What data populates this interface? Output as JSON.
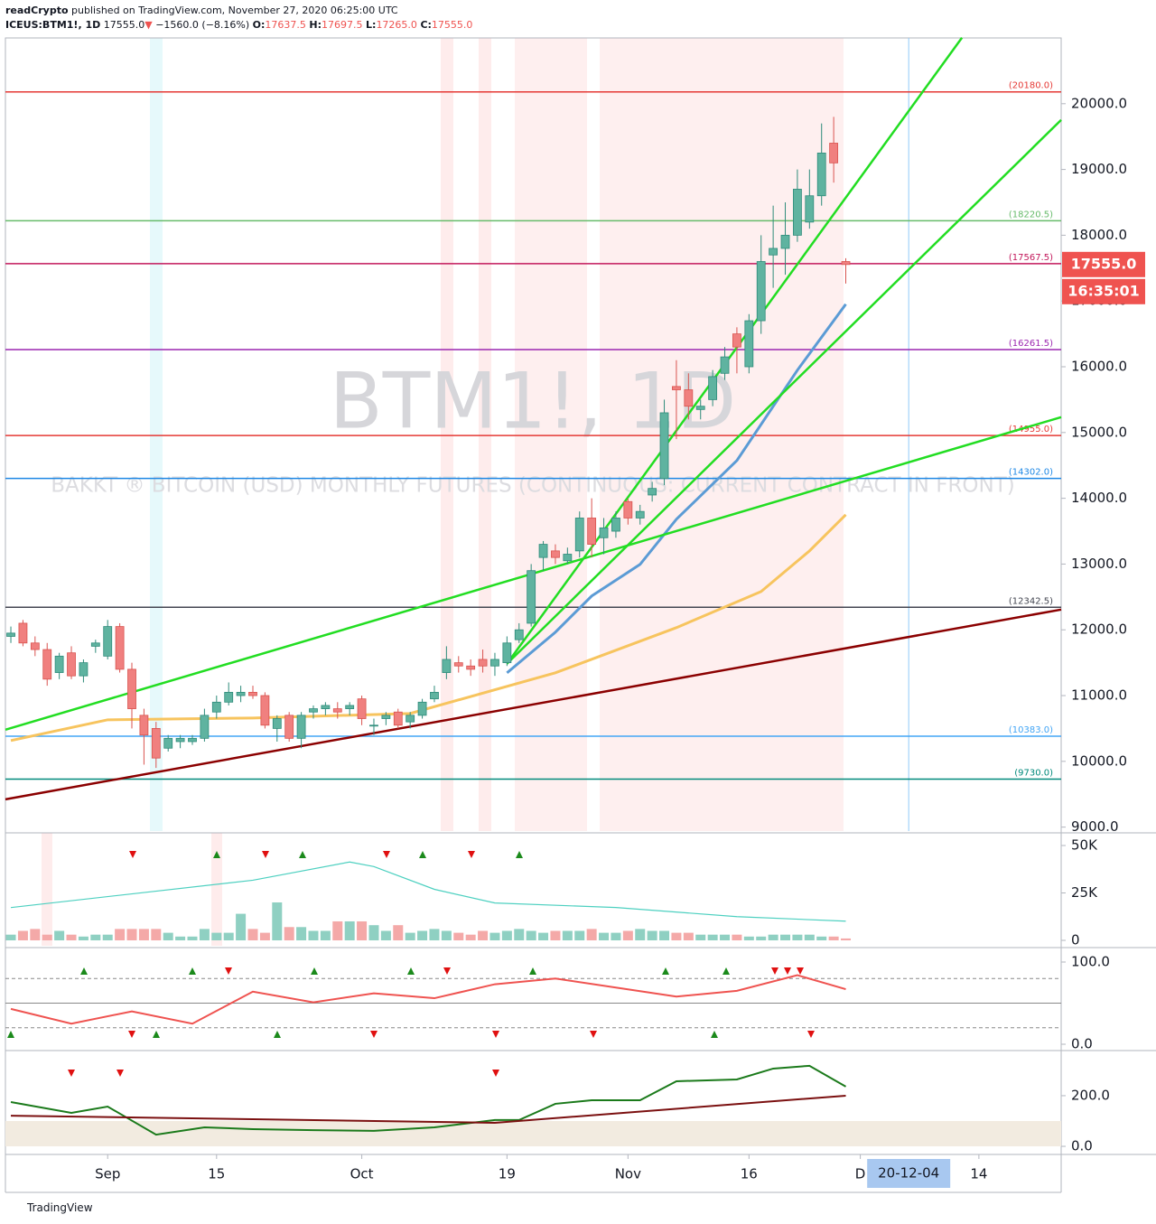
{
  "header": {
    "publisher": "readCrypto",
    "published": "published on TradingView.com, November 27, 2020 06:25:00 UTC",
    "symbol": "ICEUS:BTM1!, 1D",
    "last": "17555.0",
    "arrow": "▼",
    "change": "−1560.0 (−8.16%)",
    "o": "O:",
    "ov": "17637.5",
    "h": "H:",
    "hv": "17697.5",
    "l": "L:",
    "lv": "17265.0",
    "c": "C:",
    "cv": "17555.0",
    "watermark": "BTM1!, 1D",
    "description": "BAKKT ® BITCOIN (USD) MONTHLY FUTURES (CONTINUOUS: CURRENT CONTRACT IN FRONT)",
    "footer": "TradingView"
  },
  "chart_data": [
    {
      "type": "candlestick",
      "xlim": [
        -0.45,
        86.8
      ],
      "ylim": [
        8940,
        21000
      ],
      "up_color": "#5fb3a0",
      "down_color": "#f0807f",
      "open": [
        11900,
        12100,
        11800,
        11700,
        11350,
        11650,
        11300,
        11750,
        11600,
        12050,
        11400,
        10700,
        10500,
        10200,
        10300,
        10300,
        10350,
        10750,
        10900,
        11000,
        11050,
        11000,
        10500,
        10700,
        10350,
        10750,
        10800,
        10800,
        10800,
        10950,
        10550,
        10650,
        10750,
        10600,
        10700,
        10950,
        11350,
        11500,
        11450,
        11550,
        11450,
        11500,
        11850,
        12100,
        13100,
        13200,
        13050,
        13200,
        13700,
        13400,
        13500,
        13950,
        13700,
        14050,
        14300,
        15700,
        15650,
        15350,
        15500,
        15900,
        16500,
        16000,
        16700,
        17700,
        17800,
        18000,
        18200,
        18600,
        19400,
        17600
      ],
      "high": [
        12050,
        12150,
        11900,
        11800,
        11650,
        11750,
        11550,
        11850,
        12150,
        12100,
        11500,
        10800,
        10600,
        10400,
        10400,
        10400,
        10800,
        11000,
        11200,
        11150,
        11150,
        11050,
        10700,
        10750,
        10750,
        10850,
        10900,
        10900,
        10900,
        11000,
        10650,
        10750,
        10800,
        10750,
        10950,
        11150,
        11750,
        11600,
        11550,
        11700,
        11650,
        11900,
        12100,
        13000,
        13350,
        13300,
        13250,
        13800,
        14000,
        13700,
        13800,
        14000,
        13900,
        14250,
        15500,
        16100,
        15900,
        15500,
        15950,
        16300,
        16600,
        16800,
        18000,
        18450,
        18500,
        19000,
        19000,
        19700,
        19800,
        17650
      ],
      "low": [
        11800,
        11750,
        11600,
        11150,
        11250,
        11250,
        11200,
        11650,
        11550,
        11350,
        10500,
        9950,
        9900,
        10150,
        10200,
        10250,
        10300,
        10650,
        10850,
        10900,
        10950,
        10500,
        10300,
        10300,
        10200,
        10650,
        10700,
        10650,
        10700,
        10550,
        10400,
        10550,
        10500,
        10500,
        10650,
        10900,
        11250,
        11350,
        11300,
        11350,
        11300,
        11450,
        11800,
        12050,
        12900,
        13000,
        13000,
        13100,
        13100,
        13150,
        13400,
        13600,
        13600,
        13950,
        14200,
        14900,
        15200,
        15200,
        15400,
        15800,
        15900,
        15900,
        16500,
        17200,
        17400,
        17900,
        18100,
        18450,
        18800,
        17265
      ],
      "close": [
        11950,
        11800,
        11700,
        11250,
        11600,
        11300,
        11500,
        11800,
        12050,
        11400,
        10800,
        10400,
        10050,
        10350,
        10350,
        10350,
        10700,
        10900,
        11050,
        11050,
        11000,
        10550,
        10650,
        10350,
        10700,
        10800,
        10850,
        10750,
        10850,
        10650,
        10550,
        10700,
        10550,
        10700,
        10900,
        11050,
        11550,
        11450,
        11400,
        11450,
        11550,
        11800,
        12000,
        12900,
        13300,
        13100,
        13150,
        13700,
        13300,
        13550,
        13700,
        13700,
        13800,
        14150,
        15300,
        15650,
        15400,
        15400,
        15850,
        16150,
        16300,
        16700,
        17600,
        17800,
        18000,
        18700,
        18600,
        19250,
        19100,
        17555
      ],
      "yticks": [
        {
          "value": 9000,
          "label": "9000.0"
        },
        {
          "value": 10000,
          "label": "10000.0"
        },
        {
          "value": 11000,
          "label": "11000.0"
        },
        {
          "value": 12000,
          "label": "12000.0"
        },
        {
          "value": 13000,
          "label": "13000.0"
        },
        {
          "value": 14000,
          "label": "14000.0"
        },
        {
          "value": 15000,
          "label": "15000.0"
        },
        {
          "value": 16000,
          "label": "16000.0"
        },
        {
          "value": 17000,
          "label": "17000.0"
        },
        {
          "value": 18000,
          "label": "18000.0"
        },
        {
          "value": 19000,
          "label": "19000.0"
        },
        {
          "value": 20000,
          "label": "20000.0"
        }
      ],
      "xticks": [
        {
          "value": 8,
          "label": "Sep"
        },
        {
          "value": 17,
          "label": "15"
        },
        {
          "value": 29,
          "label": "Oct"
        },
        {
          "value": 41,
          "label": "19"
        },
        {
          "value": 51,
          "label": "Nov"
        },
        {
          "value": 61,
          "label": "16"
        },
        {
          "value": 70.2,
          "label": "D"
        },
        {
          "value": 80,
          "label": "14"
        }
      ],
      "cursor": {
        "value": 74.2,
        "label": "20-12-04"
      },
      "levels": [
        {
          "value": 20180,
          "label": "(20180.0)",
          "color": "#e53935"
        },
        {
          "value": 18220.5,
          "label": "(18220.5)",
          "color": "#66bb6a"
        },
        {
          "value": 17567.5,
          "label": "(17567.5)",
          "color": "#c2185b"
        },
        {
          "value": 16261.5,
          "label": "(16261.5)",
          "color": "#9c27b0"
        },
        {
          "value": 14955,
          "label": "(14955.0)",
          "color": "#e53935"
        },
        {
          "value": 14302,
          "label": "(14302.0)",
          "color": "#1e88e5"
        },
        {
          "value": 12342.5,
          "label": "(12342.5)",
          "color": "#434651"
        },
        {
          "value": 10383,
          "label": "(10383.0)",
          "color": "#42a5f5"
        },
        {
          "value": 9730,
          "label": "(9730.0)",
          "color": "#00897b"
        }
      ],
      "price_label": {
        "value": 17555,
        "label": "17555.0",
        "color": "#ef5350"
      },
      "countdown": "16:35:01",
      "trendlines": [
        {
          "color": "#22dd22",
          "x": [
            -0.45,
            86.8
          ],
          "values": [
            10481,
            15234
          ]
        },
        {
          "color": "#22dd22",
          "x": [
            41,
            78.6
          ],
          "values": [
            11484,
            21003
          ]
        },
        {
          "color": "#22dd22",
          "x": [
            41,
            86.8
          ],
          "values": [
            11484,
            19753
          ]
        },
        {
          "color": "#8b0000",
          "x": [
            -0.45,
            86.8
          ],
          "values": [
            9423,
            12308
          ]
        }
      ],
      "series": [
        {
          "color": "#5b9bd5",
          "x": [
            41,
            45,
            48,
            52,
            55,
            60,
            65,
            69
          ],
          "values": [
            11346,
            11964,
            12514,
            12995,
            13681,
            14574,
            15948,
            16951
          ]
        },
        {
          "color": "#f7c45e",
          "x": [
            0,
            8,
            20,
            33,
            45,
            55,
            62,
            66,
            69
          ],
          "values": [
            10316,
            10632,
            10659,
            10728,
            11346,
            12033,
            12582,
            13200,
            13750
          ]
        }
      ]
    },
    {
      "type": "bar",
      "ylim": [
        -2860,
        53800
      ],
      "values": [
        3000,
        5000,
        6000,
        3000,
        5000,
        3000,
        2000,
        3000,
        3000,
        6000,
        6000,
        6000,
        6000,
        4000,
        2000,
        2000,
        6000,
        4000,
        4000,
        14000,
        6000,
        4000,
        20000,
        7000,
        7000,
        5000,
        5000,
        10000,
        10000,
        10000,
        8000,
        5000,
        8000,
        4000,
        5000,
        6000,
        5000,
        4000,
        3000,
        5000,
        4000,
        5000,
        6000,
        5000,
        4000,
        5000,
        5000,
        5000,
        6000,
        4000,
        4000,
        5000,
        6000,
        5000,
        5000,
        4000,
        4000,
        3000,
        3000,
        3000,
        3000,
        2000,
        2000,
        3000,
        3000,
        3000,
        3000,
        2000,
        2000,
        1000
      ],
      "yticks": [
        0,
        {
          "value": 25000,
          "label": "25K"
        },
        {
          "value": 50000,
          "label": "50K"
        }
      ],
      "line": {
        "color": "#4dd0c0",
        "x": [
          0,
          10,
          20,
          28,
          30,
          35,
          40,
          50,
          60,
          69
        ],
        "values": [
          17300,
          24500,
          31700,
          41300,
          38900,
          26900,
          19700,
          17300,
          12500,
          10100
        ]
      }
    },
    {
      "type": "line",
      "ylim": [
        -6.6,
        113.2
      ],
      "levels": [
        20,
        50,
        80
      ],
      "yticks": [
        {
          "value": 0,
          "label": "0.0"
        },
        {
          "value": 100,
          "label": "100.0"
        }
      ],
      "series": [
        {
          "color": "#ef5350",
          "x": [
            0,
            5,
            10,
            15,
            20,
            25,
            30,
            35,
            40,
            45,
            50,
            55,
            60,
            65,
            69
          ],
          "values": [
            43,
            25,
            40,
            25,
            64,
            51,
            62,
            56,
            73,
            80,
            69,
            58,
            65,
            84,
            67
          ]
        }
      ]
    },
    {
      "type": "line",
      "ylim": [
        -32,
        371
      ],
      "band": [
        0,
        100
      ],
      "yticks": [
        {
          "value": 0,
          "label": "0.0"
        },
        {
          "value": 200,
          "label": "200.0"
        }
      ],
      "series": [
        {
          "color": "#1b7a1b",
          "x": [
            0,
            5,
            8,
            12,
            16,
            20,
            25,
            30,
            35,
            40,
            42,
            45,
            48,
            52,
            55,
            60,
            63,
            66,
            69
          ],
          "values": [
            175,
            132,
            157,
            46,
            75,
            68,
            64,
            61,
            75,
            104,
            104,
            168,
            182,
            182,
            257,
            264,
            307,
            318,
            236
          ]
        },
        {
          "color": "#7b1010",
          "x": [
            0,
            40,
            69
          ],
          "values": [
            121,
            93,
            200
          ]
        }
      ]
    }
  ]
}
